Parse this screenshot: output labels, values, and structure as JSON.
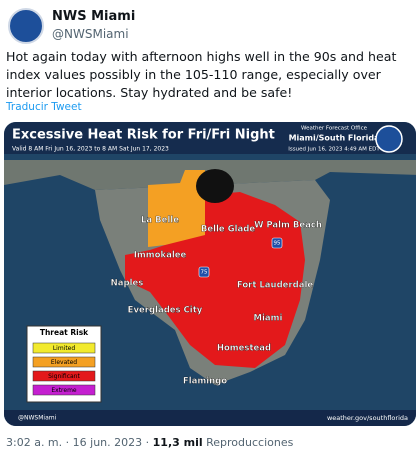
{
  "tweet": {
    "name": "NWS Miami",
    "handle": "@NWSMiami",
    "text": "Hot again today with afternoon highs well in the 90s and heat index values possibly in the 105-110 range, especially over interior locations. Stay hydrated and be safe!",
    "translate": "Traducir Tweet",
    "time": "3:02 a. m.",
    "date": "16 jun. 2023",
    "views": "11,3 mil",
    "views_label": "Reproducciones"
  },
  "map": {
    "title": "Excessive Heat Risk for Fri/Fri Night",
    "valid": "Valid 8 AM Fri Jun 16, 2023 to 8 AM Sat Jun 17, 2023",
    "office": "Weather Forecast Office",
    "office_name": "Miami/South Florida",
    "issued": "Issued Jun 16, 2023 4:49 AM EDT",
    "interstates": [
      "75",
      "95"
    ],
    "places": [
      "La Belle",
      "Belle Glade",
      "W Palm Beach",
      "Immokalee",
      "Naples",
      "Fort Lauderdale",
      "Everglades City",
      "Miami",
      "Homestead",
      "Flamingo"
    ],
    "legend": {
      "title": "Threat Risk",
      "levels": [
        {
          "label": "Limited",
          "color": "#f2ea2e"
        },
        {
          "label": "Elevated",
          "color": "#f4a023"
        },
        {
          "label": "Significant",
          "color": "#e3191b"
        },
        {
          "label": "Extreme",
          "color": "#c41fd0"
        }
      ]
    },
    "footer_handle": "@NWSMiami",
    "footer_url": "weather.gov/southflorida"
  }
}
